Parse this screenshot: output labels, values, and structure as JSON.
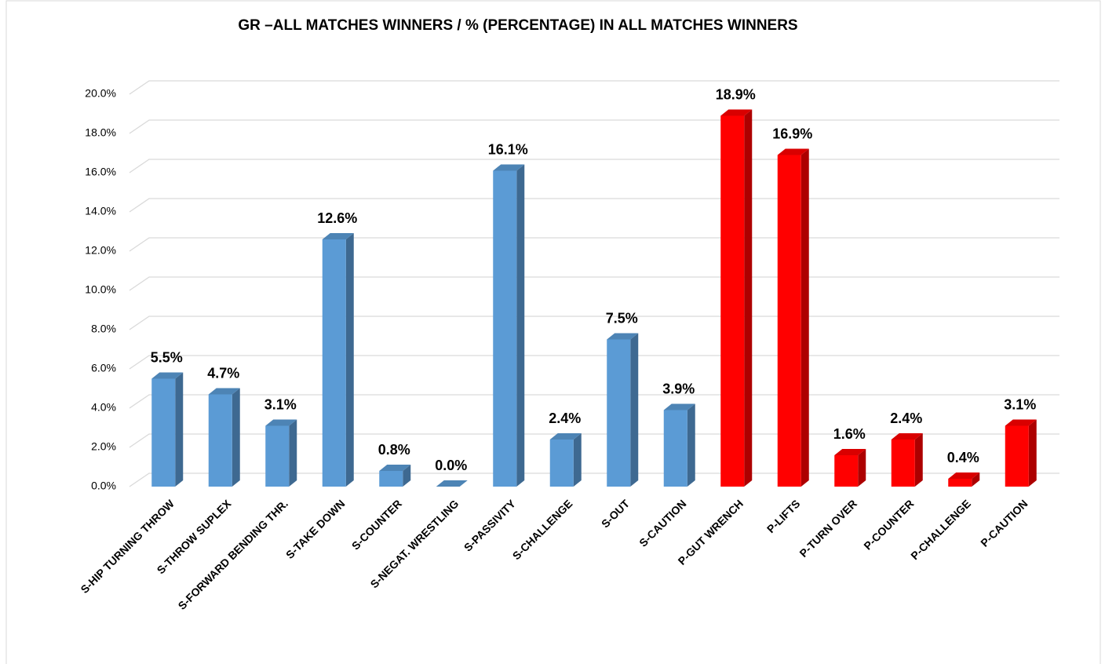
{
  "chart_data": {
    "type": "bar3d",
    "title": "GR –ALL MATCHES WINNERS / % (PERCENTAGE) IN ALL MATCHES WINNERS",
    "categories": [
      "S-HIP TURNING THROW",
      "S-THROW  SUPLEX",
      "S-FORWARD BENDING THR.",
      "S-TAKE DOWN",
      "S-COUNTER",
      "S-NEGAT. WRESTLING",
      "S-PASSIVITY",
      "S-CHALLENGE",
      "S-OUT",
      "S-CAUTION",
      "P-GUT WRENCH",
      "P-LIFTS",
      "P-TURN OVER",
      "P-COUNTER",
      "P-CHALLENGE",
      "P-CAUTION"
    ],
    "values": [
      5.5,
      4.7,
      3.1,
      12.6,
      0.8,
      0.0,
      16.1,
      2.4,
      7.5,
      3.9,
      18.9,
      16.9,
      1.6,
      2.4,
      0.4,
      3.1
    ],
    "value_labels": [
      "5.5%",
      "4.7%",
      "3.1%",
      "12.6%",
      "0.8%",
      "0.0%",
      "16.1%",
      "2.4%",
      "7.5%",
      "3.9%",
      "18.9%",
      "16.9%",
      "1.6%",
      "2.4%",
      "0.4%",
      "3.1%"
    ],
    "colors": [
      "#5b9bd5",
      "#5b9bd5",
      "#5b9bd5",
      "#5b9bd5",
      "#5b9bd5",
      "#5b9bd5",
      "#5b9bd5",
      "#5b9bd5",
      "#5b9bd5",
      "#5b9bd5",
      "#ff0000",
      "#ff0000",
      "#ff0000",
      "#ff0000",
      "#ff0000",
      "#ff0000"
    ],
    "ylim": [
      0,
      20
    ],
    "yticks": [
      {
        "value": 0,
        "label": "0.0%"
      },
      {
        "value": 2,
        "label": "2.0%"
      },
      {
        "value": 4,
        "label": "4.0%"
      },
      {
        "value": 6,
        "label": "6.0%"
      },
      {
        "value": 8,
        "label": "8.0%"
      },
      {
        "value": 10,
        "label": "10.0%"
      },
      {
        "value": 12,
        "label": "12.0%"
      },
      {
        "value": 14,
        "label": "14.0%"
      },
      {
        "value": 16,
        "label": "16.0%"
      },
      {
        "value": 18,
        "label": "18.0%"
      },
      {
        "value": 20,
        "label": "20.0%"
      }
    ],
    "grid": true
  }
}
